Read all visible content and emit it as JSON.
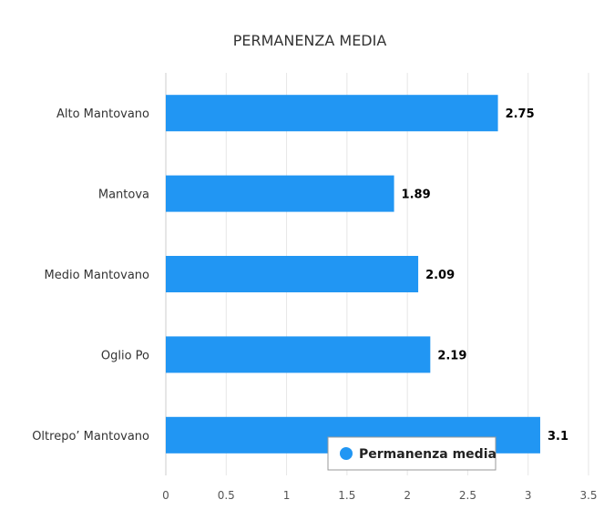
{
  "chart_data": {
    "type": "bar",
    "orientation": "horizontal",
    "title": "PERMANENZA MEDIA",
    "categories": [
      "Alto Mantovano",
      "Mantova",
      "Medio Mantovano",
      "Oglio Po",
      "Oltrepo’ Mantovano"
    ],
    "series": [
      {
        "name": "Permanenza media",
        "values": [
          2.75,
          1.89,
          2.09,
          2.19,
          3.1
        ]
      }
    ],
    "data_labels": [
      "2.75",
      "1.89",
      "2.09",
      "2.19",
      "3.1"
    ],
    "xticks": [
      "0",
      "0.5",
      "1",
      "1.5",
      "2",
      "2.5",
      "3",
      "3.5"
    ],
    "xlim": [
      0,
      3.5
    ],
    "xlabel": "",
    "ylabel": "",
    "grid": true,
    "legend": "bottom-right",
    "colors": {
      "bar": "#2196f3",
      "grid": "#e6e6e6",
      "axis": "#cccccc"
    }
  }
}
